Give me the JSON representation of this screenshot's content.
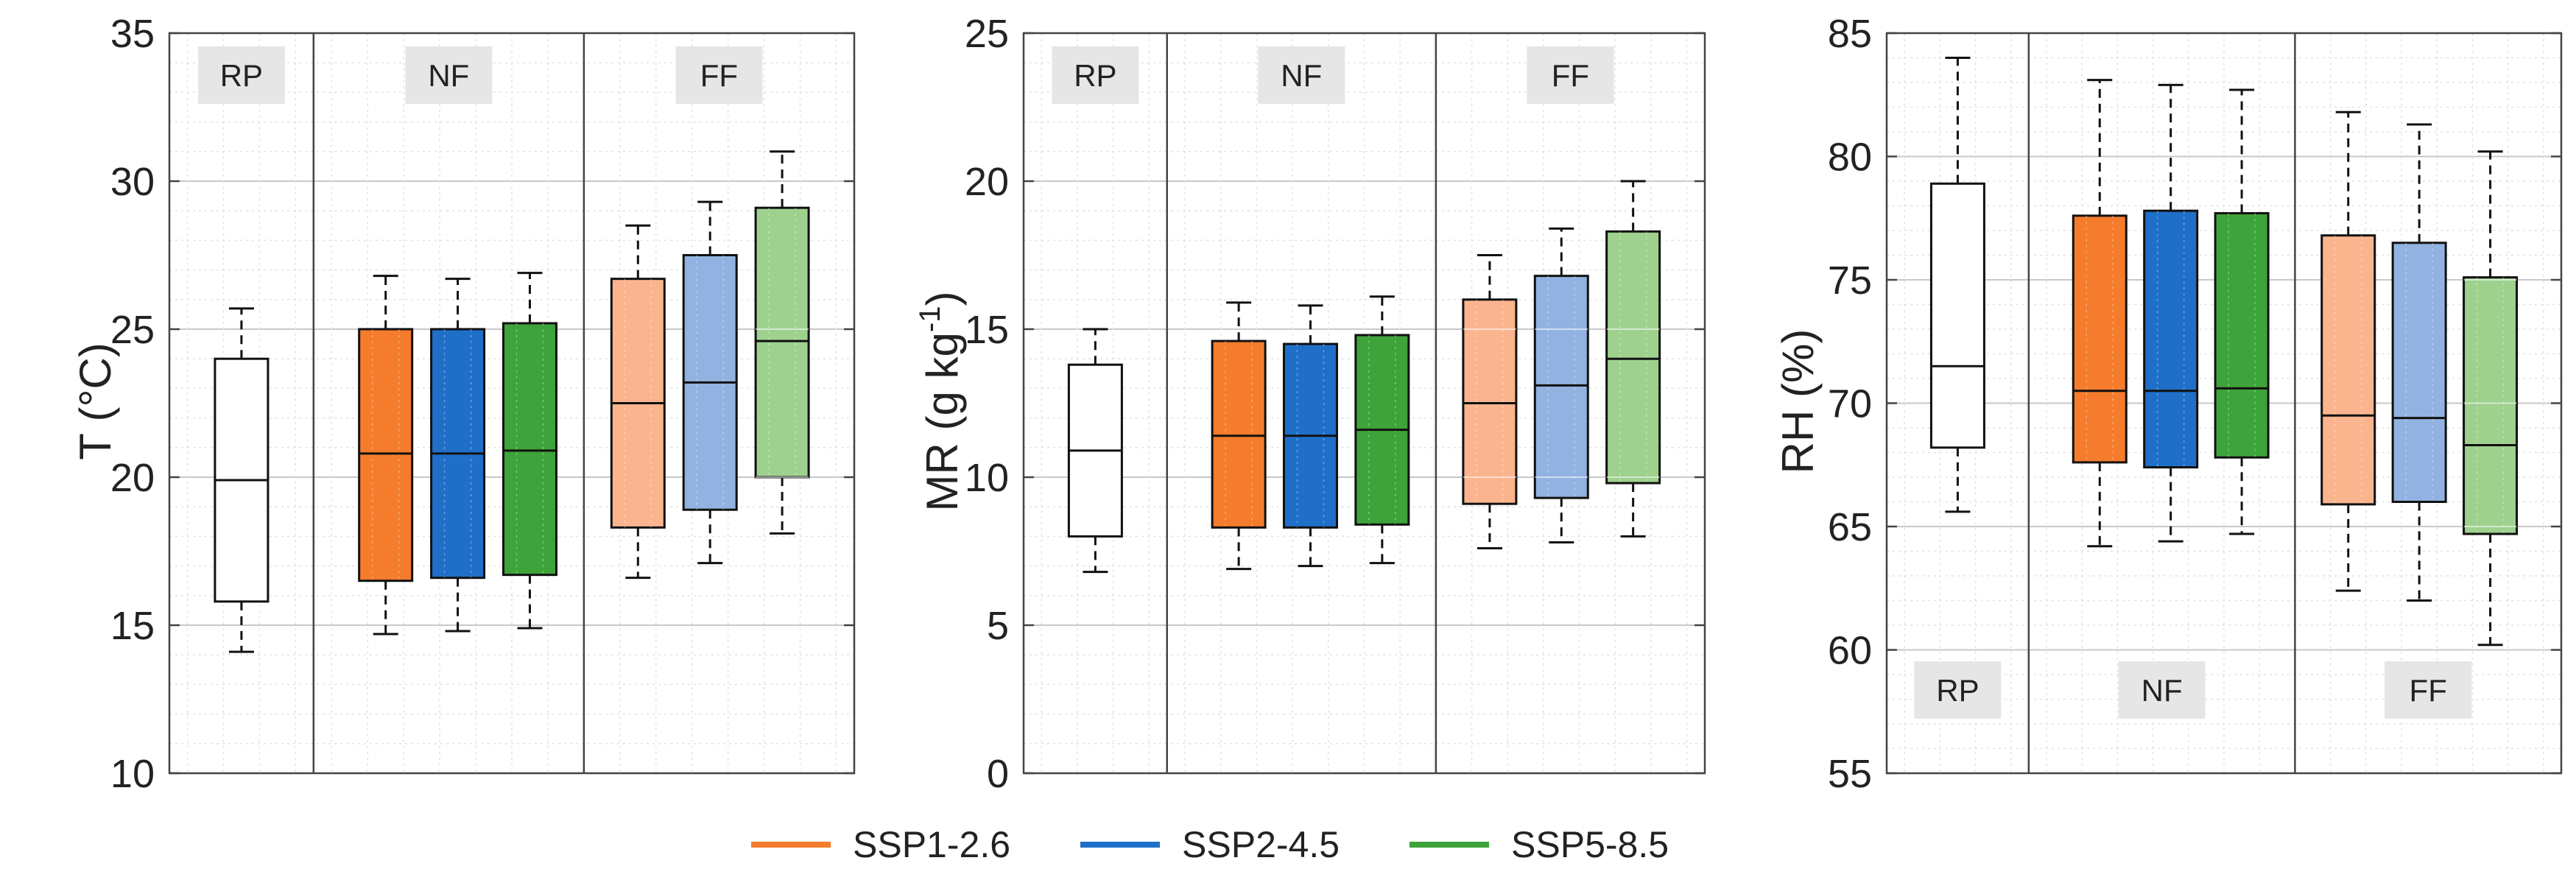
{
  "legend": [
    {
      "label": "SSP1-2.6",
      "color": "#f47c2c"
    },
    {
      "label": "SSP2-4.5",
      "color": "#1f6fc8"
    },
    {
      "label": "SSP5-8.5",
      "color": "#3ea33a"
    }
  ],
  "chart_data": [
    {
      "type": "box",
      "ylabel": "T (°C)",
      "ylim": [
        10,
        35
      ],
      "yticks": [
        10,
        15,
        20,
        25,
        30,
        35
      ],
      "ytick_labels": [
        "10",
        "15",
        "20",
        "25",
        "30",
        "35"
      ],
      "grid": true,
      "periods": [
        {
          "label": "RP",
          "boxes": [
            0
          ],
          "label_pos": "top"
        },
        {
          "label": "NF",
          "boxes": [
            1,
            2,
            3
          ],
          "label_pos": "top"
        },
        {
          "label": "FF",
          "boxes": [
            4,
            5,
            6
          ],
          "label_pos": "top"
        }
      ],
      "series": [
        {
          "name": "RP",
          "fill": "#ffffff",
          "whisker_low": 14.1,
          "q1": 15.8,
          "median": 19.9,
          "q3": 24.0,
          "whisker_high": 25.7
        },
        {
          "name": "SSP1-2.6",
          "fill": "#f47c2c",
          "whisker_low": 14.7,
          "q1": 16.5,
          "median": 20.8,
          "q3": 25.0,
          "whisker_high": 26.8
        },
        {
          "name": "SSP2-4.5",
          "fill": "#1f6fc8",
          "whisker_low": 14.8,
          "q1": 16.6,
          "median": 20.8,
          "q3": 25.0,
          "whisker_high": 26.7
        },
        {
          "name": "SSP5-8.5",
          "fill": "#3ea33a",
          "whisker_low": 14.9,
          "q1": 16.7,
          "median": 20.9,
          "q3": 25.2,
          "whisker_high": 26.9
        },
        {
          "name": "SSP1-2.6",
          "fill": "#fbb58e",
          "whisker_low": 16.6,
          "q1": 18.3,
          "median": 22.5,
          "q3": 26.7,
          "whisker_high": 28.5
        },
        {
          "name": "SSP2-4.5",
          "fill": "#92b3e1",
          "whisker_low": 17.1,
          "q1": 18.9,
          "median": 23.2,
          "q3": 27.5,
          "whisker_high": 29.3
        },
        {
          "name": "SSP5-8.5",
          "fill": "#9ed18e",
          "whisker_low": 18.1,
          "q1": 20.0,
          "median": 24.6,
          "q3": 29.1,
          "whisker_high": 31.0
        }
      ]
    },
    {
      "type": "box",
      "ylabel": "MR (g kg-1)",
      "ylim": [
        0,
        25
      ],
      "yticks": [
        0,
        5,
        10,
        15,
        20,
        25
      ],
      "ytick_labels": [
        "0",
        "5",
        "10",
        "15",
        "20",
        "25"
      ],
      "grid": true,
      "periods": [
        {
          "label": "RP",
          "boxes": [
            0
          ],
          "label_pos": "top"
        },
        {
          "label": "NF",
          "boxes": [
            1,
            2,
            3
          ],
          "label_pos": "top"
        },
        {
          "label": "FF",
          "boxes": [
            4,
            5,
            6
          ],
          "label_pos": "top"
        }
      ],
      "series": [
        {
          "name": "RP",
          "fill": "#ffffff",
          "whisker_low": 6.8,
          "q1": 8.0,
          "median": 10.9,
          "q3": 13.8,
          "whisker_high": 15.0
        },
        {
          "name": "SSP1-2.6",
          "fill": "#f47c2c",
          "whisker_low": 6.9,
          "q1": 8.3,
          "median": 11.4,
          "q3": 14.6,
          "whisker_high": 15.9
        },
        {
          "name": "SSP2-4.5",
          "fill": "#1f6fc8",
          "whisker_low": 7.0,
          "q1": 8.3,
          "median": 11.4,
          "q3": 14.5,
          "whisker_high": 15.8
        },
        {
          "name": "SSP5-8.5",
          "fill": "#3ea33a",
          "whisker_low": 7.1,
          "q1": 8.4,
          "median": 11.6,
          "q3": 14.8,
          "whisker_high": 16.1
        },
        {
          "name": "SSP1-2.6",
          "fill": "#fbb58e",
          "whisker_low": 7.6,
          "q1": 9.1,
          "median": 12.5,
          "q3": 16.0,
          "whisker_high": 17.5
        },
        {
          "name": "SSP2-4.5",
          "fill": "#92b3e1",
          "whisker_low": 7.8,
          "q1": 9.3,
          "median": 13.1,
          "q3": 16.8,
          "whisker_high": 18.4
        },
        {
          "name": "SSP5-8.5",
          "fill": "#9ed18e",
          "whisker_low": 8.0,
          "q1": 9.8,
          "median": 14.0,
          "q3": 18.3,
          "whisker_high": 20.0
        }
      ]
    },
    {
      "type": "box",
      "ylabel": "RH (%)",
      "ylim": [
        55,
        85
      ],
      "yticks": [
        55,
        60,
        65,
        70,
        75,
        80,
        85
      ],
      "ytick_labels": [
        "55",
        "60",
        "65",
        "70",
        "75",
        "80",
        "85"
      ],
      "grid": true,
      "periods": [
        {
          "label": "RP",
          "boxes": [
            0
          ],
          "label_pos": "bottom"
        },
        {
          "label": "NF",
          "boxes": [
            1,
            2,
            3
          ],
          "label_pos": "bottom"
        },
        {
          "label": "FF",
          "boxes": [
            4,
            5,
            6
          ],
          "label_pos": "bottom"
        }
      ],
      "series": [
        {
          "name": "RP",
          "fill": "#ffffff",
          "whisker_low": 65.6,
          "q1": 68.2,
          "median": 71.5,
          "q3": 78.9,
          "whisker_high": 84.0
        },
        {
          "name": "SSP1-2.6",
          "fill": "#f47c2c",
          "whisker_low": 64.2,
          "q1": 67.6,
          "median": 70.5,
          "q3": 77.6,
          "whisker_high": 83.1
        },
        {
          "name": "SSP2-4.5",
          "fill": "#1f6fc8",
          "whisker_low": 64.4,
          "q1": 67.4,
          "median": 70.5,
          "q3": 77.8,
          "whisker_high": 82.9
        },
        {
          "name": "SSP5-8.5",
          "fill": "#3ea33a",
          "whisker_low": 64.7,
          "q1": 67.8,
          "median": 70.6,
          "q3": 77.7,
          "whisker_high": 82.7
        },
        {
          "name": "SSP1-2.6",
          "fill": "#fbb58e",
          "whisker_low": 62.4,
          "q1": 65.9,
          "median": 69.5,
          "q3": 76.8,
          "whisker_high": 81.8
        },
        {
          "name": "SSP2-4.5",
          "fill": "#92b3e1",
          "whisker_low": 62.0,
          "q1": 66.0,
          "median": 69.4,
          "q3": 76.5,
          "whisker_high": 81.3
        },
        {
          "name": "SSP5-8.5",
          "fill": "#9ed18e",
          "whisker_low": 60.2,
          "q1": 64.7,
          "median": 68.3,
          "q3": 75.1,
          "whisker_high": 80.2
        }
      ]
    }
  ]
}
